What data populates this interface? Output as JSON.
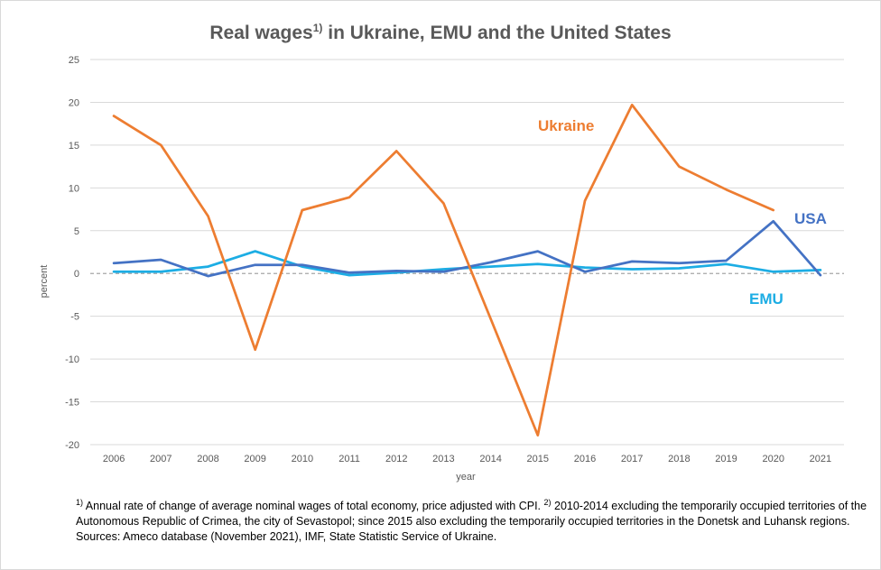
{
  "chart_data": {
    "type": "line",
    "title": "Real wages",
    "title_note": "1)",
    "title_rest": " in Ukraine, EMU and the United States",
    "xlabel": "year",
    "ylabel": "percent",
    "ylim": [
      -20,
      25
    ],
    "yticks": [
      25,
      20,
      15,
      10,
      5,
      0,
      -5,
      -10,
      -15,
      -20
    ],
    "grid": true,
    "zero_line": "dashed",
    "x": [
      "2006",
      "2007",
      "2008",
      "2009",
      "2010",
      "2011",
      "2012",
      "2013",
      "2014",
      "2015",
      "2016",
      "2017",
      "2018",
      "2019",
      "2020",
      "2021"
    ],
    "series": [
      {
        "name": "Ukraine",
        "color": "#ED7D31",
        "values": [
          18.4,
          15.0,
          6.7,
          -8.9,
          7.4,
          8.9,
          14.3,
          8.2,
          -5.3,
          -18.9,
          8.5,
          19.7,
          12.5,
          9.8,
          7.4,
          null
        ]
      },
      {
        "name": "USA",
        "color": "#4472C4",
        "values": [
          1.2,
          1.6,
          -0.3,
          1.0,
          1.0,
          0.1,
          0.3,
          0.2,
          1.3,
          2.6,
          0.2,
          1.4,
          1.2,
          1.5,
          6.1,
          -0.2
        ]
      },
      {
        "name": "EMU",
        "color": "#1CADE4",
        "values": [
          0.2,
          0.2,
          0.8,
          2.6,
          0.8,
          -0.2,
          0.1,
          0.5,
          0.8,
          1.1,
          0.7,
          0.5,
          0.6,
          1.1,
          0.2,
          0.4
        ]
      }
    ]
  },
  "footnotes": {
    "note1_marker": "1)",
    "note1_text": " Annual rate of change of average nominal wages of total economy, price adjusted with CPI. ",
    "note2_marker": "2)",
    "note2_text": " 2010-2014  excluding the temporarily occupied territories of the Autonomous Republic of Crimea, the city of Sevastopol; since 2015 also excluding the temporarily occupied territories in the Donetsk and Luhansk regions.",
    "sources": "Sources: Ameco database (November 2021), IMF, State Statistic Service of Ukraine."
  }
}
